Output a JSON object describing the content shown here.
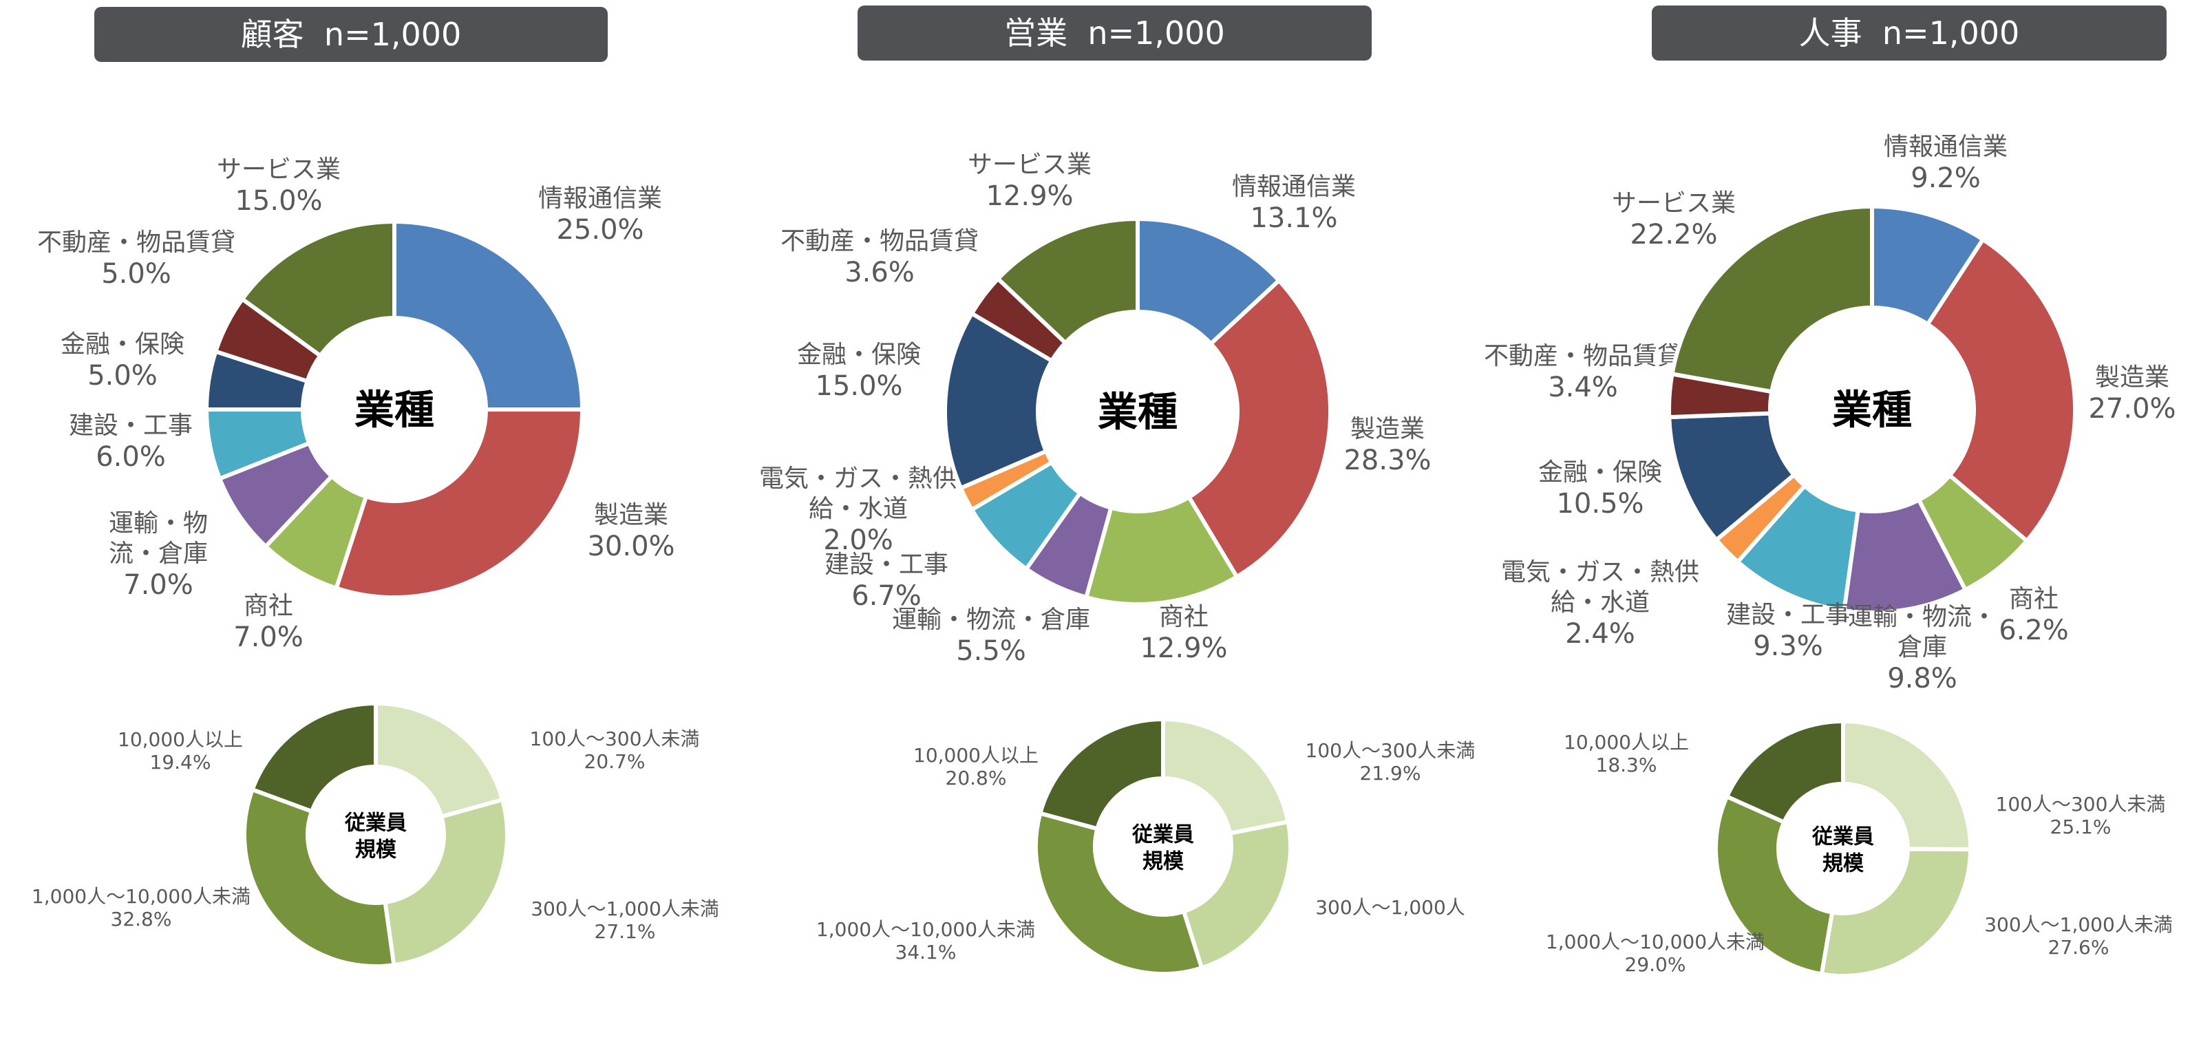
{
  "colors": {
    "情報通信業": "#4f81bd",
    "製造業": "#c0504d",
    "商社": "#9bbb59",
    "運輸・物流・倉庫": "#8064a2",
    "建設・工事": "#4bacc6",
    "電気・ガス・熱供給・水道": "#f79646",
    "金融・保険": "#2c4d75",
    "不動産・物品賃貸": "#772c2a",
    "サービス業": "#5f7530",
    "size1": "#d7e4bd",
    "size2": "#c3d69b",
    "size3": "#77933c",
    "size4": "#4f6228",
    "header_bg": "#4f5155",
    "label": "#595959"
  },
  "panels": [
    {
      "header": "顧客  n=1,000",
      "industry_center": "業種",
      "size_center": [
        "従業員",
        "規模"
      ]
    },
    {
      "header": "営業  n=1,000",
      "industry_center": "業種",
      "size_center": [
        "従業員",
        "規模"
      ]
    },
    {
      "header": "人事  n=1,000",
      "industry_center": "業種",
      "size_center": [
        "従業員",
        "規模"
      ]
    }
  ],
  "chart_data": [
    {
      "type": "pie",
      "title": "顧客  n=1,000",
      "center_label": "業種",
      "slices": [
        {
          "key": "情報通信業",
          "lines": [
            "情報通信業"
          ],
          "value_label": "25.0%",
          "value": 25.0
        },
        {
          "key": "製造業",
          "lines": [
            "製造業"
          ],
          "value_label": "30.0%",
          "value": 30.0
        },
        {
          "key": "商社",
          "lines": [
            "商社"
          ],
          "value_label": "7.0%",
          "value": 7.0
        },
        {
          "key": "運輸・物流・倉庫",
          "lines": [
            "運輸・物",
            "流・倉庫"
          ],
          "value_label": "7.0%",
          "value": 7.0
        },
        {
          "key": "建設・工事",
          "lines": [
            "建設・工事"
          ],
          "value_label": "6.0%",
          "value": 6.0
        },
        {
          "key": "金融・保険",
          "lines": [
            "金融・保険"
          ],
          "value_label": "5.0%",
          "value": 5.0
        },
        {
          "key": "不動産・物品賃貸",
          "lines": [
            "不動産・物品賃貸"
          ],
          "value_label": "5.0%",
          "value": 5.0
        },
        {
          "key": "サービス業",
          "lines": [
            "サービス業"
          ],
          "value_label": "15.0%",
          "value": 15.0
        }
      ]
    },
    {
      "type": "pie",
      "title": "顧客  n=1,000",
      "center_label": "従業員規模",
      "slices": [
        {
          "key": "size1",
          "lines": [
            "100人～300人未満"
          ],
          "value_label": "20.7%",
          "value": 20.7
        },
        {
          "key": "size2",
          "lines": [
            "300人～1,000人未満"
          ],
          "value_label": "27.1%",
          "value": 27.1
        },
        {
          "key": "size3",
          "lines": [
            "1,000人～10,000人未満"
          ],
          "value_label": "32.8%",
          "value": 32.8
        },
        {
          "key": "size4",
          "lines": [
            "10,000人以上"
          ],
          "value_label": "19.4%",
          "value": 19.4
        }
      ]
    },
    {
      "type": "pie",
      "title": "営業  n=1,000",
      "center_label": "業種",
      "slices": [
        {
          "key": "情報通信業",
          "lines": [
            "情報通信業"
          ],
          "value_label": "13.1%",
          "value": 13.1
        },
        {
          "key": "製造業",
          "lines": [
            "製造業"
          ],
          "value_label": "28.3%",
          "value": 28.3
        },
        {
          "key": "商社",
          "lines": [
            "商社"
          ],
          "value_label": "12.9%",
          "value": 12.9
        },
        {
          "key": "運輸・物流・倉庫",
          "lines": [
            "運輸・物流・倉庫"
          ],
          "value_label": "5.5%",
          "value": 5.5
        },
        {
          "key": "建設・工事",
          "lines": [
            "建設・工事"
          ],
          "value_label": "6.7%",
          "value": 6.7
        },
        {
          "key": "電気・ガス・熱供給・水道",
          "lines": [
            "電気・ガス・熱供",
            "給・水道"
          ],
          "value_label": "2.0%",
          "value": 2.0
        },
        {
          "key": "金融・保険",
          "lines": [
            "金融・保険"
          ],
          "value_label": "15.0%",
          "value": 15.0
        },
        {
          "key": "不動産・物品賃貸",
          "lines": [
            "不動産・物品賃貸"
          ],
          "value_label": "3.6%",
          "value": 3.6
        },
        {
          "key": "サービス業",
          "lines": [
            "サービス業"
          ],
          "value_label": "12.9%",
          "value": 12.9
        }
      ]
    },
    {
      "type": "pie",
      "title": "営業  n=1,000",
      "center_label": "従業員規模",
      "slices": [
        {
          "key": "size1",
          "lines": [
            "100人～300人未満"
          ],
          "value_label": "21.9%",
          "value": 21.9
        },
        {
          "key": "size2",
          "lines": [
            "300人～1,000人"
          ],
          "value_label": "",
          "value": 23.2
        },
        {
          "key": "size3",
          "lines": [
            "1,000人～10,000人未満"
          ],
          "value_label": "34.1%",
          "value": 34.1
        },
        {
          "key": "size4",
          "lines": [
            "10,000人以上"
          ],
          "value_label": "20.8%",
          "value": 20.8
        }
      ]
    },
    {
      "type": "pie",
      "title": "人事  n=1,000",
      "center_label": "業種",
      "slices": [
        {
          "key": "情報通信業",
          "lines": [
            "情報通信業"
          ],
          "value_label": "9.2%",
          "value": 9.2
        },
        {
          "key": "製造業",
          "lines": [
            "製造業"
          ],
          "value_label": "27.0%",
          "value": 27.0
        },
        {
          "key": "商社",
          "lines": [
            "商社"
          ],
          "value_label": "6.2%",
          "value": 6.2
        },
        {
          "key": "運輸・物流・倉庫",
          "lines": [
            "運輸・物流・",
            "倉庫"
          ],
          "value_label": "9.8%",
          "value": 9.8
        },
        {
          "key": "建設・工事",
          "lines": [
            "建設・工事"
          ],
          "value_label": "9.3%",
          "value": 9.3
        },
        {
          "key": "電気・ガス・熱供給・水道",
          "lines": [
            "電気・ガス・熱供",
            "給・水道"
          ],
          "value_label": "2.4%",
          "value": 2.4
        },
        {
          "key": "金融・保険",
          "lines": [
            "金融・保険"
          ],
          "value_label": "10.5%",
          "value": 10.5
        },
        {
          "key": "不動産・物品賃貸",
          "lines": [
            "不動産・物品賃貸"
          ],
          "value_label": "3.4%",
          "value": 3.4
        },
        {
          "key": "サービス業",
          "lines": [
            "サービス業"
          ],
          "value_label": "22.2%",
          "value": 22.2
        }
      ]
    },
    {
      "type": "pie",
      "title": "人事  n=1,000",
      "center_label": "従業員規模",
      "slices": [
        {
          "key": "size1",
          "lines": [
            "100人～300人未満"
          ],
          "value_label": "25.1%",
          "value": 25.1
        },
        {
          "key": "size2",
          "lines": [
            "300人～1,000人未満"
          ],
          "value_label": "27.6%",
          "value": 27.6
        },
        {
          "key": "size3",
          "lines": [
            "1,000人～10,000人未満"
          ],
          "value_label": "29.0%",
          "value": 29.0
        },
        {
          "key": "size4",
          "lines": [
            "10,000人以上"
          ],
          "value_label": "18.3%",
          "value": 18.3
        }
      ]
    }
  ]
}
